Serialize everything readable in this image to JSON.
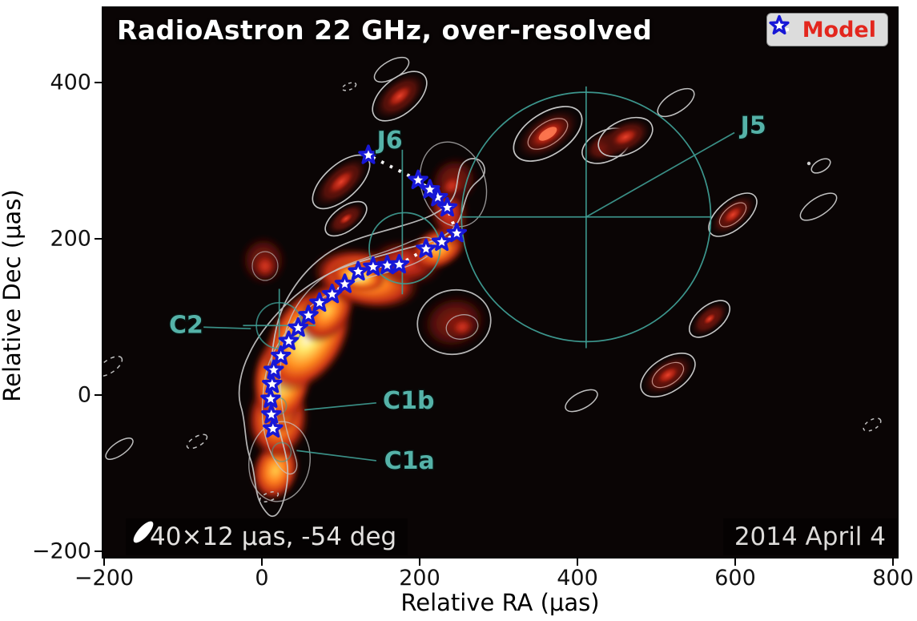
{
  "figure": {
    "title": "RadioAstron 22 GHz, over-resolved",
    "beam_text": "40×12 μas, -54 deg",
    "date_text": "2014 April 4",
    "legend": {
      "label": "Model"
    }
  },
  "chart_data": {
    "type": "scatter",
    "title": "RadioAstron 22 GHz, over-resolved",
    "xlabel": "Relative RA (μas)",
    "ylabel": "Relative Dec (μas)",
    "xlim": [
      -203,
      807
    ],
    "ylim": [
      -212,
      497
    ],
    "xticks": [
      -200,
      0,
      200,
      400,
      600,
      800
    ],
    "yticks": [
      -200,
      0,
      200,
      400
    ],
    "grid": false,
    "legend": {
      "position": "upper right",
      "entries": [
        {
          "label": "Model",
          "marker": "star",
          "marker_face": "#ffffff",
          "marker_edge": "#1717d6",
          "line_style": "dotted",
          "line_color": "#ffffff",
          "text_color": "#e3261d"
        }
      ]
    },
    "series": [
      {
        "name": "Model",
        "marker": "star",
        "x": [
          12,
          10,
          9,
          11,
          13,
          22,
          32,
          44,
          57,
          71,
          87,
          103,
          120,
          139,
          157,
          172,
          206,
          226,
          245,
          233,
          221,
          211,
          196,
          133
        ],
        "y": [
          -41,
          -23,
          -3,
          16,
          34,
          52,
          71,
          88,
          104,
          120,
          131,
          144,
          160,
          166,
          168,
          169,
          189,
          198,
          209,
          242,
          255,
          265,
          277,
          309
        ]
      }
    ],
    "components": [
      {
        "label": "J5",
        "x": 409,
        "y": 230,
        "radius_uas": 158,
        "circle_opacity": 0.95,
        "label_x": 621,
        "label_y": 347,
        "lines": [
          [
            252,
            230,
            567,
            230
          ],
          [
            409,
            62,
            409,
            397
          ],
          [
            409,
            230,
            597,
            338
          ]
        ]
      },
      {
        "label": "J6",
        "x": 179,
        "y": 190,
        "radius_uas": 45,
        "circle_opacity": 0.9,
        "label_x": 160,
        "label_y": 328,
        "lines": [
          [
            176,
            131,
            176,
            316
          ]
        ]
      },
      {
        "label": "C2",
        "x": 20,
        "y": 91,
        "radius_uas": 29,
        "circle_opacity": 0.8,
        "label_x": -98,
        "label_y": 92,
        "lines": [
          [
            -26,
            91,
            66,
            91
          ],
          [
            20,
            44,
            20,
            138
          ],
          [
            -76,
            89,
            -16,
            87
          ]
        ]
      },
      {
        "label": "C1b",
        "x": 18,
        "y": -12,
        "radius_uas": 11,
        "circle_opacity": 0.55,
        "label_x": 184,
        "label_y": -5,
        "lines": [
          [
            52,
            -17,
            143,
            -8
          ]
        ]
      },
      {
        "label": "C1a",
        "x": 23,
        "y": -71,
        "radius_uas": 12,
        "circle_opacity": 0.55,
        "label_x": 185,
        "label_y": -82,
        "lines": [
          [
            42,
            -69,
            143,
            -82
          ]
        ]
      }
    ],
    "annotations": {
      "beam": "40×12 μas, -54 deg",
      "epoch": "2014 April 4"
    }
  },
  "colors": {
    "teal": "#3f9e95",
    "teal_label": "#55b2a8",
    "star_edge": "#1717d6",
    "star_face": "#ffffff",
    "model_text": "#e3261d",
    "contour": "#c6c6c6",
    "background": "#0a0505"
  }
}
